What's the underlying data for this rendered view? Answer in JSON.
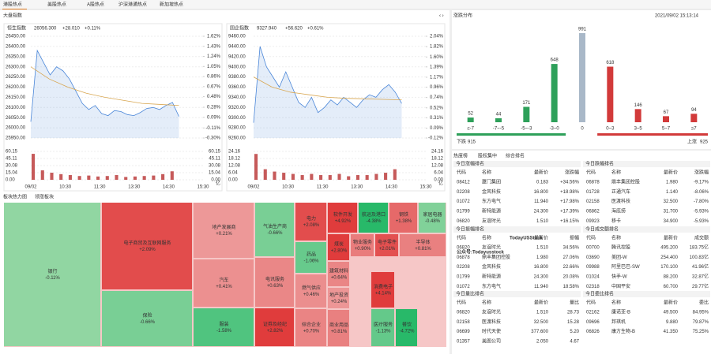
{
  "tabs": [
    "港股热点",
    "美股热点",
    "A股热点",
    "沪深港通热点",
    "新加坡热点"
  ],
  "index_panel": {
    "title": "大盘指数",
    "charts": [
      {
        "type": "line",
        "name": "恒生指数",
        "last": "26056.300",
        "change": "+28.010",
        "pct": "+0.11%",
        "ylim": [
          25950,
          26450
        ],
        "yticks": [
          {
            "value": 26450,
            "label": "26450.00"
          },
          {
            "value": 26400,
            "label": "26400.00"
          },
          {
            "value": 26350,
            "label": "26350.00"
          },
          {
            "value": 26300,
            "label": "26300.00"
          },
          {
            "value": 26250,
            "label": "26250.00"
          },
          {
            "value": 26200,
            "label": "26200.00"
          },
          {
            "value": 26150,
            "label": "26150.00"
          },
          {
            "value": 26100,
            "label": "26100.00"
          },
          {
            "value": 26050,
            "label": "26050.00"
          },
          {
            "value": 26000,
            "label": "26000.00"
          },
          {
            "value": 25950,
            "label": "25950.00"
          }
        ],
        "y2lim": [
          -0.3,
          1.62
        ],
        "y2ticks": [
          {
            "value": 1.62,
            "label": "1.62%"
          },
          {
            "value": 1.43,
            "label": "1.43%"
          },
          {
            "value": 1.24,
            "label": "1.24%"
          },
          {
            "value": 1.05,
            "label": "1.05%"
          },
          {
            "value": 0.86,
            "label": "0.86%"
          },
          {
            "value": 0.67,
            "label": "0.67%"
          },
          {
            "value": 0.48,
            "label": "0.48%"
          },
          {
            "value": 0.28,
            "label": "0.28%"
          },
          {
            "value": 0.09,
            "label": "0.09%"
          },
          {
            "value": -0.11,
            "label": "-0.11%"
          },
          {
            "value": -0.3,
            "label": "-0.30%"
          }
        ],
        "xticks": [
          "09/02",
          "10:30",
          "11:30",
          "13:30",
          "14:30",
          "15:30"
        ],
        "price": [
          26030,
          26380,
          26320,
          26260,
          26300,
          26280,
          26240,
          26180,
          26120,
          26090,
          26110,
          26070,
          26060,
          26085,
          26080,
          26065,
          26060,
          26075,
          26095,
          26100,
          26090,
          26110,
          26125,
          26056
        ],
        "avg": [
          26300,
          26240,
          26200,
          26170,
          26150,
          26135,
          26120,
          26115,
          26110
        ],
        "price_color": "#4a86d8",
        "avg_color": "#d8a650",
        "volume": {
          "ylim": [
            0,
            60.15
          ],
          "yticks": [
            {
              "value": 60.15,
              "label": "60.15"
            },
            {
              "value": 45.11,
              "label": "45.11"
            },
            {
              "value": 30.08,
              "label": "30.08"
            },
            {
              "value": 15.04,
              "label": "15.04"
            },
            {
              "value": 0,
              "label": "0.00"
            }
          ],
          "unit": "亿",
          "values": [
            55,
            20,
            15,
            12,
            10,
            8,
            9,
            7,
            8,
            10,
            6,
            7,
            8,
            9,
            12,
            18
          ],
          "color": "#c65a5a"
        }
      },
      {
        "type": "line",
        "name": "国企指数",
        "last": "9327.940",
        "change": "+56.620",
        "pct": "+0.61%",
        "ylim": [
          9260,
          9460
        ],
        "yticks": [
          {
            "value": 9460,
            "label": "9460.00"
          },
          {
            "value": 9440,
            "label": "9440.00"
          },
          {
            "value": 9420,
            "label": "9420.00"
          },
          {
            "value": 9400,
            "label": "9400.00"
          },
          {
            "value": 9380,
            "label": "9380.00"
          },
          {
            "value": 9360,
            "label": "9360.00"
          },
          {
            "value": 9340,
            "label": "9340.00"
          },
          {
            "value": 9320,
            "label": "9320.00"
          },
          {
            "value": 9300,
            "label": "9300.00"
          },
          {
            "value": 9280,
            "label": "9280.00"
          },
          {
            "value": 9260,
            "label": "9260.00"
          }
        ],
        "y2lim": [
          -0.12,
          2.04
        ],
        "y2ticks": [
          {
            "value": 2.04,
            "label": "2.04%"
          },
          {
            "value": 1.82,
            "label": "1.82%"
          },
          {
            "value": 1.6,
            "label": "1.60%"
          },
          {
            "value": 1.39,
            "label": "1.39%"
          },
          {
            "value": 1.17,
            "label": "1.17%"
          },
          {
            "value": 0.96,
            "label": "0.96%"
          },
          {
            "value": 0.74,
            "label": "0.74%"
          },
          {
            "value": 0.52,
            "label": "0.52%"
          },
          {
            "value": 0.31,
            "label": "0.31%"
          },
          {
            "value": 0.09,
            "label": "0.09%"
          },
          {
            "value": -0.12,
            "label": "-0.12%"
          }
        ],
        "xticks": [
          "09/02",
          "10:30",
          "11:30",
          "13:30",
          "14:30",
          "15:30"
        ],
        "price": [
          9290,
          9440,
          9400,
          9380,
          9360,
          9390,
          9360,
          9330,
          9320,
          9340,
          9310,
          9320,
          9335,
          9325,
          9340,
          9330,
          9320,
          9335,
          9345,
          9340,
          9355,
          9365,
          9350,
          9328
        ],
        "avg": [
          9380,
          9360,
          9350,
          9345,
          9340,
          9338,
          9337,
          9336,
          9335
        ],
        "price_color": "#4a86d8",
        "avg_color": "#d8a650",
        "volume": {
          "ylim": [
            0,
            24.16
          ],
          "yticks": [
            {
              "value": 24.16,
              "label": "24.16"
            },
            {
              "value": 18.12,
              "label": "18.12"
            },
            {
              "value": 12.08,
              "label": "12.08"
            },
            {
              "value": 6.04,
              "label": "6.04"
            },
            {
              "value": 0,
              "label": "0.00"
            }
          ],
          "unit": "亿",
          "values": [
            22,
            9,
            7,
            6,
            5,
            4,
            5,
            4,
            4,
            5,
            3,
            4,
            4,
            5,
            6,
            9
          ],
          "color": "#c65a5a"
        }
      }
    ]
  },
  "distribution": {
    "type": "bar",
    "title": "涨跌分布",
    "time": "2021/09/02 15:13:14",
    "categories": [
      "≤-7",
      "-7~-5",
      "-5~-3",
      "-3~0",
      "0",
      "0~3",
      "3~5",
      "5~7",
      "≥7"
    ],
    "values": [
      52,
      44,
      171,
      648,
      991,
      618,
      146,
      67,
      94
    ],
    "colors": [
      "#2ea05a",
      "#2ea05a",
      "#2ea05a",
      "#2ea05a",
      "#a9b8c8",
      "#d23a3a",
      "#d23a3a",
      "#d23a3a",
      "#d23a3a"
    ],
    "down_label": "下跌",
    "down": 915,
    "up_label": "上涨",
    "up": 925
  },
  "hot": {
    "tabs": [
      "热度榜",
      "股权集中",
      "综合排名"
    ],
    "tables": [
      {
        "title": "今日涨幅排名",
        "columns": [
          "代码",
          "名称",
          "最新价",
          "涨跌幅"
        ],
        "rows": [
          [
            "08412",
            "厦门集团",
            "0.183",
            "+34.56%"
          ],
          [
            "02208",
            "金风科技",
            "16.800",
            "+18.98%"
          ],
          [
            "01072",
            "东方电气",
            "11.940",
            "+17.98%"
          ],
          [
            "01799",
            "新特能源",
            "24.300",
            "+17.39%"
          ],
          [
            "06820",
            "友谊时光",
            "1.510",
            "+16.15%"
          ]
        ]
      },
      {
        "title": "今日跌幅排名",
        "columns": [
          "代码",
          "名称",
          "最新价",
          "涨跌幅"
        ],
        "rows": [
          [
            "06878",
            "鼎丰集团控股",
            "1.980",
            "-9.17%"
          ],
          [
            "01728",
            "正通汽车",
            "1.140",
            "-8.06%"
          ],
          [
            "02158",
            "医渡科技",
            "32.500",
            "-7.80%"
          ],
          [
            "06862",
            "海底捞",
            "31.700",
            "-5.93%"
          ],
          [
            "09923",
            "移卡",
            "34.900",
            "-5.93%"
          ]
        ]
      },
      {
        "title": "今日振幅排名",
        "columns": [
          "代码",
          "名称",
          "最新价",
          "振幅"
        ],
        "rows": [
          [
            "06820",
            "友谊时光",
            "1.510",
            "34.56%"
          ],
          [
            "06878",
            "鼎丰集团控股",
            "1.980",
            "27.06%"
          ],
          [
            "02208",
            "金风科技",
            "16.800",
            "22.66%"
          ],
          [
            "01799",
            "新特能源",
            "24.300",
            "20.08%"
          ],
          [
            "01072",
            "东方电气",
            "11.940",
            "18.58%"
          ]
        ]
      },
      {
        "title": "今日成交额排名",
        "columns": [
          "代码",
          "名称",
          "最新价",
          "成交额"
        ],
        "rows": [
          [
            "00700",
            "腾讯控股",
            "495.200",
            "183.75亿"
          ],
          [
            "03690",
            "美团-W",
            "254.400",
            "100.83亿"
          ],
          [
            "09988",
            "阿里巴巴-SW",
            "170.100",
            "41.96亿"
          ],
          [
            "01024",
            "快手-W",
            "88.200",
            "32.87亿"
          ],
          [
            "02318",
            "中国平安",
            "60.700",
            "29.77亿"
          ]
        ]
      },
      {
        "title": "今日量比排名",
        "columns": [
          "代码",
          "名称",
          "最新价",
          "量比"
        ],
        "rows": [
          [
            "06820",
            "友谊时光",
            "1.510",
            "28.73"
          ],
          [
            "02158",
            "医渡科技",
            "32.500",
            "15.28"
          ],
          [
            "06699",
            "时代天使",
            "377.600",
            "5.20"
          ],
          [
            "01357",
            "美图公司",
            "2.050",
            "4.67"
          ]
        ]
      },
      {
        "title": "今日委比排名",
        "columns": [
          "代码",
          "名称",
          "最新价",
          "委比"
        ],
        "rows": [
          [
            "02162",
            "康诺亚-B",
            "49.500",
            "84.95%"
          ],
          [
            "09696",
            "邦琪机",
            "9.880",
            "79.87%"
          ],
          [
            "06826",
            "康方生物-B",
            "41.350",
            "75.25%"
          ]
        ]
      }
    ]
  },
  "heatmap": {
    "title": "板块热力图",
    "tab": "领涨板块",
    "tiles": [
      {
        "name": "银行",
        "value": -0.11,
        "label": "-0.11%"
      },
      {
        "name": "电子商贸及互联网服务",
        "value": 2.09,
        "label": "+2.09%"
      },
      {
        "name": "保险",
        "value": -0.66,
        "label": "-0.66%"
      },
      {
        "name": "地产发展商",
        "value": 0.21,
        "label": "+0.21%"
      },
      {
        "name": "汽车",
        "value": 0.41,
        "label": "+0.41%"
      },
      {
        "name": "服装",
        "value": -1.58,
        "label": "-1.58%"
      },
      {
        "name": "气油生产商",
        "value": -0.66,
        "label": "-0.66%"
      },
      {
        "name": "电讯服务",
        "value": 0.63,
        "label": "+0.63%"
      },
      {
        "name": "证券及经纪",
        "value": 2.82,
        "label": "+2.82%"
      },
      {
        "name": "电力",
        "value": 2.08,
        "label": "+2.08%"
      },
      {
        "name": "药品",
        "value": -1.06,
        "label": "-1.06%"
      },
      {
        "name": "燃气供应",
        "value": 0.46,
        "label": "+0.46%"
      },
      {
        "name": "综合企业",
        "value": 0.7,
        "label": "+0.70%"
      },
      {
        "name": "软件开发",
        "value": 4.92,
        "label": "+4.92%"
      },
      {
        "name": "煤炭",
        "value": 2.8,
        "label": "+2.80%"
      },
      {
        "name": "建筑材料",
        "value": 0.64,
        "label": "+0.64%"
      },
      {
        "name": "地产投资",
        "value": 0.24,
        "label": "+0.24%"
      },
      {
        "name": "商业用品",
        "value": 0.81,
        "label": "+0.81%"
      },
      {
        "name": "航运及港口",
        "value": -4.38,
        "label": "-4.38%"
      },
      {
        "name": "物业服务",
        "value": 0.9,
        "label": "+0.90%"
      },
      {
        "name": "电子零件",
        "value": 2.01,
        "label": "+2.01%"
      },
      {
        "name": "钢铁",
        "value": 1.38,
        "label": "+1.38%"
      },
      {
        "name": "家居电器",
        "value": -0.48,
        "label": "-0.48%"
      },
      {
        "name": "半导体",
        "value": 0.81,
        "label": "+0.81%"
      },
      {
        "name": "消费电子",
        "value": 4.14,
        "label": "+4.14%"
      },
      {
        "name": "医疗服务",
        "value": -1.13,
        "label": "-1.13%"
      },
      {
        "name": "餐饮",
        "value": -4.72,
        "label": "-4.72%"
      }
    ]
  },
  "watermark": [
    "TodayUSStock",
    "公众号:Todayusstock"
  ]
}
